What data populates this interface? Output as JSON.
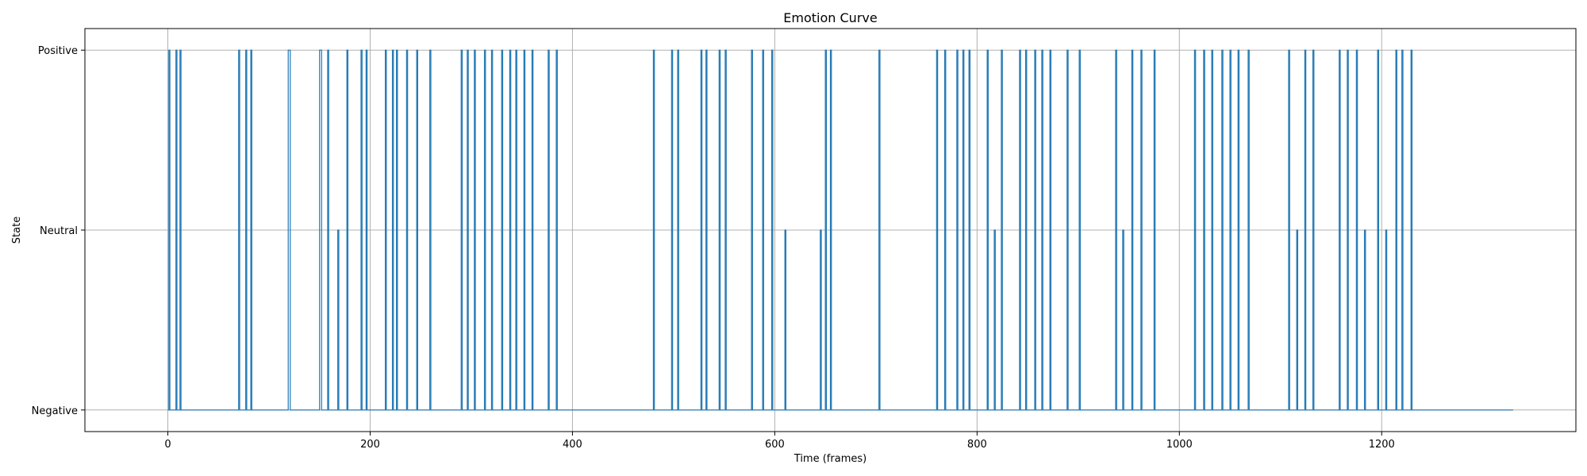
{
  "chart_data": {
    "type": "line",
    "title": "Emotion Curve",
    "xlabel": "Time (frames)",
    "ylabel": "State",
    "xlim": [
      -82,
      1392
    ],
    "ylim": [
      -0.06,
      1.06
    ],
    "xticks": [
      0,
      200,
      400,
      600,
      800,
      1000,
      1200
    ],
    "yticks": [
      {
        "value": 0,
        "label": "Negative"
      },
      {
        "value": 0.5,
        "label": "Neutral"
      },
      {
        "value": 1,
        "label": "Positive"
      }
    ],
    "grid": true,
    "series": [
      {
        "color": "#1f77b4",
        "segments": [
          {
            "x": 0,
            "y": 0
          },
          {
            "x": 1,
            "y": 1
          },
          {
            "x": 2,
            "y": 0
          },
          {
            "x": 8,
            "y": 1
          },
          {
            "x": 9,
            "y": 0
          },
          {
            "x": 12,
            "y": 1
          },
          {
            "x": 13,
            "y": 0
          },
          {
            "x": 70,
            "y": 1
          },
          {
            "x": 71,
            "y": 0
          },
          {
            "x": 77,
            "y": 1
          },
          {
            "x": 78,
            "y": 0
          },
          {
            "x": 82,
            "y": 1
          },
          {
            "x": 83,
            "y": 0
          },
          {
            "x": 119,
            "y": 1
          },
          {
            "x": 121,
            "y": 0
          },
          {
            "x": 150,
            "y": 1
          },
          {
            "x": 152,
            "y": 0
          },
          {
            "x": 158,
            "y": 1
          },
          {
            "x": 159,
            "y": 0
          },
          {
            "x": 168,
            "y": 0.5
          },
          {
            "x": 169,
            "y": 0
          },
          {
            "x": 177,
            "y": 1
          },
          {
            "x": 178,
            "y": 0
          },
          {
            "x": 191,
            "y": 1
          },
          {
            "x": 192,
            "y": 0
          },
          {
            "x": 196,
            "y": 1
          },
          {
            "x": 197,
            "y": 0
          },
          {
            "x": 215,
            "y": 1
          },
          {
            "x": 216,
            "y": 0
          },
          {
            "x": 222,
            "y": 1
          },
          {
            "x": 223,
            "y": 0
          },
          {
            "x": 226,
            "y": 1
          },
          {
            "x": 227,
            "y": 0
          },
          {
            "x": 236,
            "y": 1
          },
          {
            "x": 237,
            "y": 0
          },
          {
            "x": 246,
            "y": 1
          },
          {
            "x": 247,
            "y": 0
          },
          {
            "x": 259,
            "y": 1
          },
          {
            "x": 260,
            "y": 0
          },
          {
            "x": 290,
            "y": 1
          },
          {
            "x": 291,
            "y": 0
          },
          {
            "x": 296,
            "y": 1
          },
          {
            "x": 297,
            "y": 0
          },
          {
            "x": 303,
            "y": 1
          },
          {
            "x": 304,
            "y": 0
          },
          {
            "x": 313,
            "y": 1
          },
          {
            "x": 314,
            "y": 0
          },
          {
            "x": 320,
            "y": 1
          },
          {
            "x": 321,
            "y": 0
          },
          {
            "x": 330,
            "y": 1
          },
          {
            "x": 331,
            "y": 0
          },
          {
            "x": 338,
            "y": 1
          },
          {
            "x": 339,
            "y": 0
          },
          {
            "x": 344,
            "y": 1
          },
          {
            "x": 345,
            "y": 0
          },
          {
            "x": 352,
            "y": 1
          },
          {
            "x": 353,
            "y": 0
          },
          {
            "x": 360,
            "y": 1
          },
          {
            "x": 361,
            "y": 0
          },
          {
            "x": 376,
            "y": 1
          },
          {
            "x": 377,
            "y": 0
          },
          {
            "x": 384,
            "y": 1
          },
          {
            "x": 385,
            "y": 0
          },
          {
            "x": 480,
            "y": 1
          },
          {
            "x": 481,
            "y": 0
          },
          {
            "x": 498,
            "y": 1
          },
          {
            "x": 499,
            "y": 0
          },
          {
            "x": 504,
            "y": 1
          },
          {
            "x": 505,
            "y": 0
          },
          {
            "x": 527,
            "y": 1
          },
          {
            "x": 528,
            "y": 0
          },
          {
            "x": 532,
            "y": 1
          },
          {
            "x": 533,
            "y": 0
          },
          {
            "x": 545,
            "y": 1
          },
          {
            "x": 546,
            "y": 0
          },
          {
            "x": 551,
            "y": 1
          },
          {
            "x": 552,
            "y": 0
          },
          {
            "x": 577,
            "y": 1
          },
          {
            "x": 578,
            "y": 0
          },
          {
            "x": 588,
            "y": 1
          },
          {
            "x": 589,
            "y": 0
          },
          {
            "x": 597,
            "y": 1
          },
          {
            "x": 598,
            "y": 0
          },
          {
            "x": 610,
            "y": 0.5
          },
          {
            "x": 611,
            "y": 0
          },
          {
            "x": 645,
            "y": 0.5
          },
          {
            "x": 646,
            "y": 0
          },
          {
            "x": 650,
            "y": 1
          },
          {
            "x": 651,
            "y": 0
          },
          {
            "x": 655,
            "y": 1
          },
          {
            "x": 656,
            "y": 0
          },
          {
            "x": 703,
            "y": 1
          },
          {
            "x": 704,
            "y": 0
          },
          {
            "x": 760,
            "y": 1
          },
          {
            "x": 761,
            "y": 0
          },
          {
            "x": 768,
            "y": 1
          },
          {
            "x": 769,
            "y": 0
          },
          {
            "x": 780,
            "y": 1
          },
          {
            "x": 781,
            "y": 0
          },
          {
            "x": 786,
            "y": 1
          },
          {
            "x": 787,
            "y": 0
          },
          {
            "x": 792,
            "y": 1
          },
          {
            "x": 793,
            "y": 0
          },
          {
            "x": 810,
            "y": 1
          },
          {
            "x": 811,
            "y": 0
          },
          {
            "x": 817,
            "y": 0.5
          },
          {
            "x": 818,
            "y": 0
          },
          {
            "x": 824,
            "y": 1
          },
          {
            "x": 825,
            "y": 0
          },
          {
            "x": 842,
            "y": 1
          },
          {
            "x": 843,
            "y": 0
          },
          {
            "x": 848,
            "y": 1
          },
          {
            "x": 849,
            "y": 0
          },
          {
            "x": 857,
            "y": 1
          },
          {
            "x": 858,
            "y": 0
          },
          {
            "x": 864,
            "y": 1
          },
          {
            "x": 865,
            "y": 0
          },
          {
            "x": 872,
            "y": 1
          },
          {
            "x": 873,
            "y": 0
          },
          {
            "x": 889,
            "y": 1
          },
          {
            "x": 890,
            "y": 0
          },
          {
            "x": 901,
            "y": 1
          },
          {
            "x": 902,
            "y": 0
          },
          {
            "x": 937,
            "y": 1
          },
          {
            "x": 938,
            "y": 0
          },
          {
            "x": 944,
            "y": 0.5
          },
          {
            "x": 945,
            "y": 0
          },
          {
            "x": 953,
            "y": 1
          },
          {
            "x": 954,
            "y": 0
          },
          {
            "x": 962,
            "y": 1
          },
          {
            "x": 963,
            "y": 0
          },
          {
            "x": 975,
            "y": 1
          },
          {
            "x": 976,
            "y": 0
          },
          {
            "x": 1015,
            "y": 1
          },
          {
            "x": 1016,
            "y": 0
          },
          {
            "x": 1024,
            "y": 1
          },
          {
            "x": 1025,
            "y": 0
          },
          {
            "x": 1032,
            "y": 1
          },
          {
            "x": 1033,
            "y": 0
          },
          {
            "x": 1042,
            "y": 1
          },
          {
            "x": 1043,
            "y": 0
          },
          {
            "x": 1050,
            "y": 1
          },
          {
            "x": 1051,
            "y": 0
          },
          {
            "x": 1058,
            "y": 1
          },
          {
            "x": 1059,
            "y": 0
          },
          {
            "x": 1068,
            "y": 1
          },
          {
            "x": 1069,
            "y": 0
          },
          {
            "x": 1108,
            "y": 1
          },
          {
            "x": 1109,
            "y": 0
          },
          {
            "x": 1116,
            "y": 0.5
          },
          {
            "x": 1117,
            "y": 0
          },
          {
            "x": 1124,
            "y": 1
          },
          {
            "x": 1125,
            "y": 0
          },
          {
            "x": 1132,
            "y": 1
          },
          {
            "x": 1133,
            "y": 0
          },
          {
            "x": 1158,
            "y": 1
          },
          {
            "x": 1159,
            "y": 0
          },
          {
            "x": 1166,
            "y": 1
          },
          {
            "x": 1167,
            "y": 0
          },
          {
            "x": 1175,
            "y": 1
          },
          {
            "x": 1176,
            "y": 0
          },
          {
            "x": 1183,
            "y": 0.5
          },
          {
            "x": 1184,
            "y": 0
          },
          {
            "x": 1196,
            "y": 1
          },
          {
            "x": 1197,
            "y": 0
          },
          {
            "x": 1204,
            "y": 0.5
          },
          {
            "x": 1205,
            "y": 0
          },
          {
            "x": 1214,
            "y": 1
          },
          {
            "x": 1215,
            "y": 0
          },
          {
            "x": 1220,
            "y": 1
          },
          {
            "x": 1221,
            "y": 0
          },
          {
            "x": 1229,
            "y": 1
          },
          {
            "x": 1230,
            "y": 0
          },
          {
            "x": 1330,
            "y": 0
          }
        ]
      }
    ]
  }
}
